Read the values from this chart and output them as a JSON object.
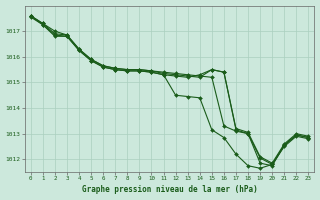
{
  "title": "Graphe pression niveau de la mer (hPa)",
  "xlabel_hours": [
    0,
    1,
    2,
    3,
    4,
    5,
    6,
    7,
    8,
    9,
    10,
    11,
    12,
    13,
    14,
    15,
    16,
    17,
    18,
    19,
    20,
    21,
    22,
    23
  ],
  "ylim": [
    1011.5,
    1018.0
  ],
  "yticks": [
    1012,
    1013,
    1014,
    1015,
    1016,
    1017
  ],
  "background_color": "#cce8dc",
  "grid_color": "#aacfbf",
  "line_color": "#1a5c1a",
  "marker_color": "#1a5c1a",
  "series": [
    [
      1017.6,
      1017.3,
      1017.0,
      1016.85,
      1016.3,
      1015.9,
      1015.65,
      1015.55,
      1015.5,
      1015.5,
      1015.45,
      1015.4,
      1015.35,
      1015.3,
      1015.25,
      1015.2,
      1013.3,
      1013.1,
      1013.0,
      1011.85,
      1011.75,
      1012.55,
      1012.95,
      1012.85
    ],
    [
      1017.6,
      1017.3,
      1016.9,
      1016.85,
      1016.3,
      1015.9,
      1015.65,
      1015.55,
      1015.5,
      1015.5,
      1015.45,
      1015.35,
      1015.3,
      1015.25,
      1015.2,
      1015.5,
      1015.4,
      1013.2,
      1013.05,
      1012.1,
      1011.85,
      1012.6,
      1013.0,
      1012.9
    ],
    [
      1017.55,
      1017.25,
      1016.85,
      1016.8,
      1016.25,
      1015.85,
      1015.6,
      1015.5,
      1015.45,
      1015.45,
      1015.4,
      1015.3,
      1015.25,
      1015.2,
      1015.3,
      1015.5,
      1015.4,
      1013.15,
      1013.0,
      1012.05,
      1011.8,
      1012.55,
      1012.95,
      1012.85
    ],
    [
      1017.6,
      1017.25,
      1016.8,
      1016.8,
      1016.25,
      1015.85,
      1015.6,
      1015.5,
      1015.45,
      1015.45,
      1015.4,
      1015.3,
      1014.5,
      1014.45,
      1014.4,
      1013.15,
      1012.85,
      1012.2,
      1011.75,
      1011.65,
      1011.8,
      1012.5,
      1012.9,
      1012.8
    ]
  ]
}
